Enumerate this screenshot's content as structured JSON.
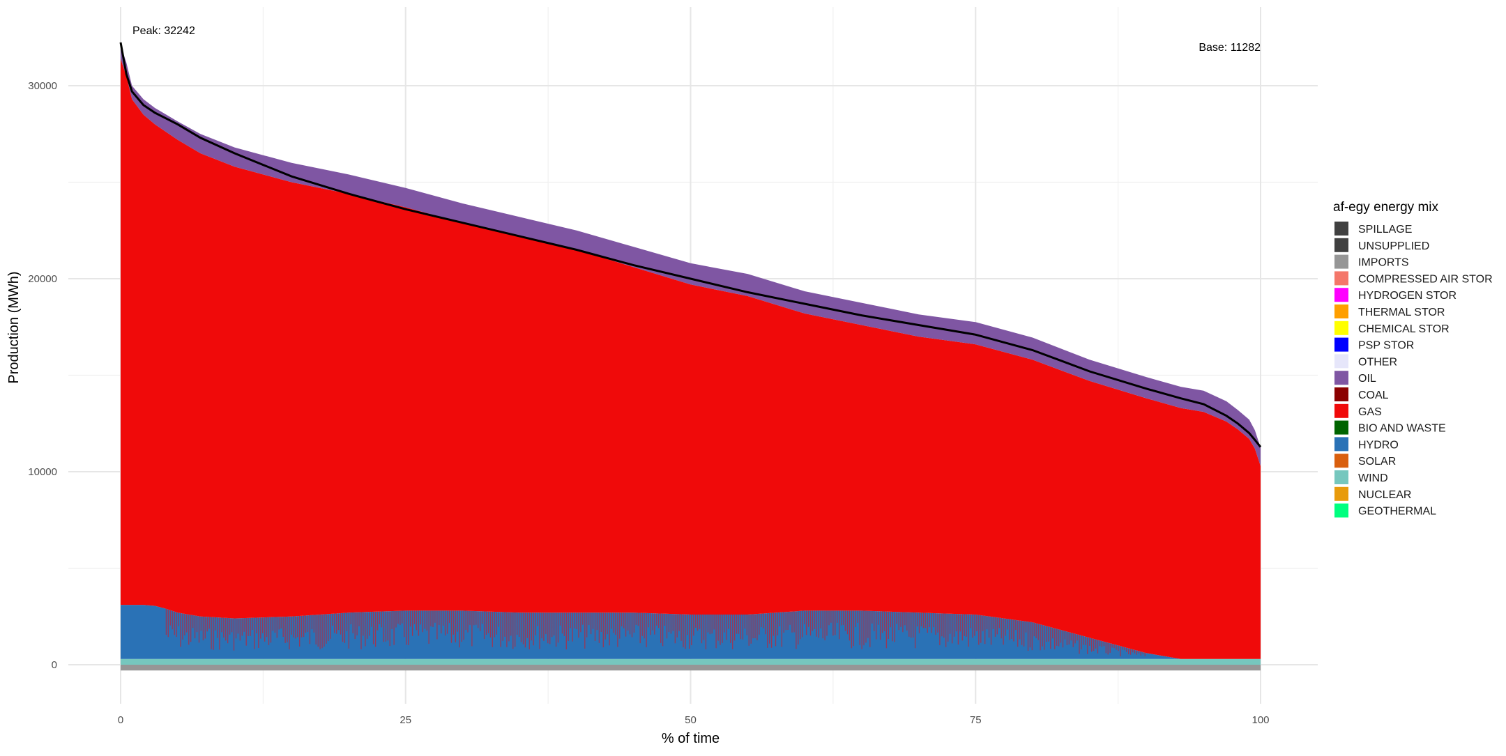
{
  "chart_data": {
    "type": "area",
    "xlabel": "% of time",
    "ylabel": "Production (MWh)",
    "xlim": [
      0,
      100
    ],
    "ylim": [
      -2000,
      33000
    ],
    "x_ticks": [
      0,
      25,
      50,
      75,
      100
    ],
    "y_ticks": [
      0,
      10000,
      20000,
      30000
    ],
    "grid": true,
    "legend": {
      "title": "af-egy energy mix",
      "placement": "right",
      "entries": [
        {
          "name": "SPILLAGE",
          "color": "#404040"
        },
        {
          "name": "UNSUPPLIED",
          "color": "#404040"
        },
        {
          "name": "IMPORTS",
          "color": "#969696"
        },
        {
          "name": "COMPRESSED AIR STOR",
          "color": "#f4776a"
        },
        {
          "name": "HYDROGEN STOR",
          "color": "#ff00ff"
        },
        {
          "name": "THERMAL STOR",
          "color": "#ff9f00"
        },
        {
          "name": "CHEMICAL STOR",
          "color": "#ffff00"
        },
        {
          "name": "PSP STOR",
          "color": "#0000ff"
        },
        {
          "name": "OTHER",
          "color": "#e6e6fa"
        },
        {
          "name": "OIL",
          "color": "#7f56a3"
        },
        {
          "name": "COAL",
          "color": "#8b0000"
        },
        {
          "name": "GAS",
          "color": "#f00a0a"
        },
        {
          "name": "BIO AND WASTE",
          "color": "#006400"
        },
        {
          "name": "HYDRO",
          "color": "#2a72b6"
        },
        {
          "name": "SOLAR",
          "color": "#d95f0e"
        },
        {
          "name": "WIND",
          "color": "#76c7be"
        },
        {
          "name": "NUCLEAR",
          "color": "#e89b0c"
        },
        {
          "name": "GEOTHERMAL",
          "color": "#00ff7f"
        }
      ]
    },
    "annotations": {
      "peak_label": "Peak: 32242",
      "base_label": "Base: 11282",
      "peak_value": 32242,
      "base_value": 11282
    },
    "x": [
      0,
      0.5,
      1,
      2,
      3,
      4,
      5,
      7,
      10,
      15,
      20,
      25,
      30,
      35,
      40,
      45,
      50,
      55,
      60,
      65,
      70,
      75,
      80,
      85,
      90,
      93,
      95,
      97,
      98,
      99,
      99.5,
      100
    ],
    "series": [
      {
        "name": "IMPORTS",
        "values": [
          -300,
          -300,
          -300,
          -300,
          -300,
          -300,
          -300,
          -300,
          -300,
          -300,
          -300,
          -300,
          -300,
          -300,
          -300,
          -300,
          -300,
          -300,
          -300,
          -300,
          -300,
          -300,
          -300,
          -300,
          -300,
          -300,
          -300,
          -300,
          -300,
          -300,
          -300,
          -300
        ]
      },
      {
        "name": "WIND",
        "values": [
          300,
          300,
          300,
          300,
          300,
          300,
          300,
          300,
          300,
          300,
          300,
          300,
          300,
          300,
          300,
          300,
          300,
          300,
          300,
          300,
          300,
          300,
          300,
          300,
          300,
          300,
          300,
          300,
          300,
          300,
          300,
          300
        ]
      },
      {
        "name": "HYDRO",
        "values": [
          2800,
          2800,
          2800,
          2800,
          2750,
          2600,
          2400,
          2200,
          2100,
          2200,
          2400,
          2500,
          2500,
          2400,
          2400,
          2400,
          2300,
          2300,
          2500,
          2500,
          2400,
          2300,
          1900,
          1100,
          300,
          0,
          0,
          0,
          0,
          0,
          0,
          0
        ]
      },
      {
        "name": "GAS",
        "values": [
          28300,
          27400,
          26200,
          25400,
          24950,
          24700,
          24500,
          24000,
          23400,
          22500,
          21700,
          20900,
          20100,
          19500,
          18800,
          17900,
          17100,
          16500,
          15400,
          14800,
          14300,
          14000,
          13600,
          13300,
          13200,
          13000,
          12800,
          12300,
          11900,
          11400,
          10900,
          10000
        ]
      },
      {
        "name": "OIL",
        "values": [
          700,
          700,
          700,
          800,
          850,
          900,
          950,
          1000,
          1000,
          1000,
          1000,
          1000,
          1000,
          1000,
          1000,
          1050,
          1100,
          1150,
          1150,
          1150,
          1150,
          1150,
          1150,
          1100,
          1100,
          1100,
          1100,
          1050,
          1000,
          1000,
          950,
          950
        ]
      }
    ],
    "total_demand": [
      32242,
      30600,
      29700,
      29000,
      28600,
      28300,
      28000,
      27300,
      26500,
      25300,
      24400,
      23600,
      22900,
      22200,
      21500,
      20700,
      20000,
      19300,
      18700,
      18100,
      17600,
      17100,
      16300,
      15200,
      14300,
      13800,
      13500,
      12900,
      12500,
      12000,
      11650,
      11282
    ]
  }
}
